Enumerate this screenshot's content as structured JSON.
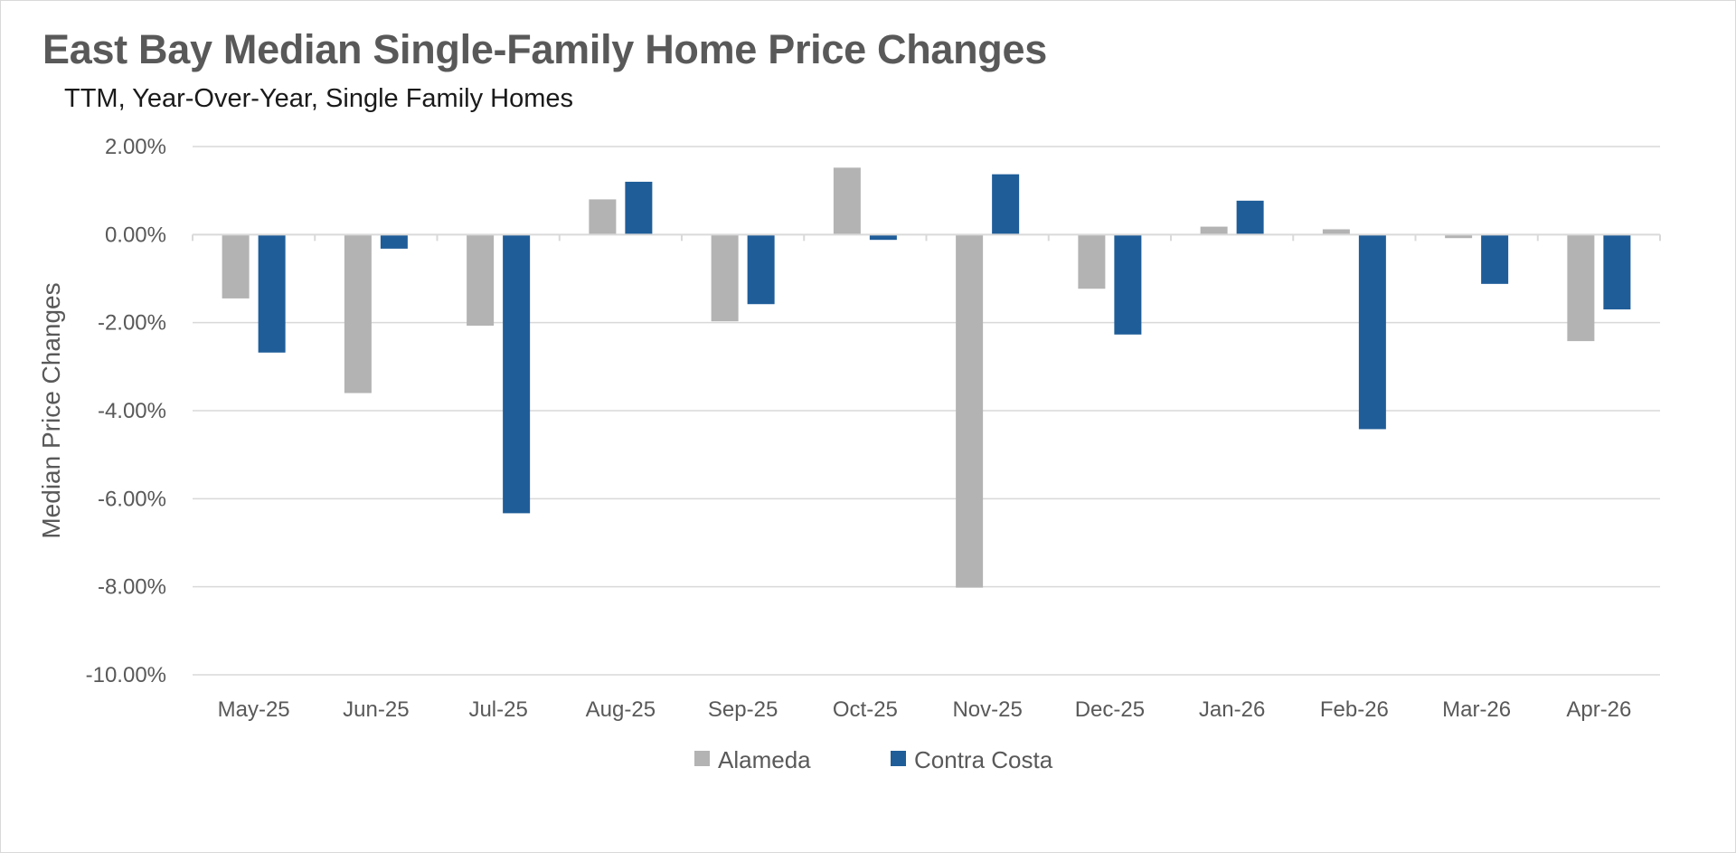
{
  "chart_data": {
    "type": "bar",
    "title": "East Bay Median Single-Family Home Price Changes",
    "subtitle": "TTM, Year-Over-Year, Single Family Homes",
    "xlabel": "",
    "ylabel": "Median Price Changes",
    "ylim": [
      -10,
      2
    ],
    "yticks": [
      2,
      0,
      -2,
      -4,
      -6,
      -8,
      -10
    ],
    "ytick_labels": [
      "2.00%",
      "0.00%",
      "-2.00%",
      "-4.00%",
      "-6.00%",
      "-8.00%",
      "-10.00%"
    ],
    "categories": [
      "May-25",
      "Jun-25",
      "Jul-25",
      "Aug-25",
      "Sep-25",
      "Oct-25",
      "Nov-25",
      "Dec-25",
      "Jan-26",
      "Feb-26",
      "Mar-26",
      "Apr-26"
    ],
    "series": [
      {
        "name": "Alameda",
        "color": "#b3b3b3",
        "values": [
          -1.45,
          -3.6,
          -2.07,
          0.8,
          -1.97,
          1.52,
          -8.02,
          -1.23,
          0.18,
          0.12,
          -0.08,
          -2.42
        ]
      },
      {
        "name": "Contra Costa",
        "color": "#1f5d99",
        "values": [
          -2.68,
          -0.32,
          -6.33,
          1.2,
          -1.58,
          -0.12,
          1.37,
          -2.27,
          0.77,
          -4.42,
          -1.12,
          -1.7
        ]
      }
    ],
    "grid": true,
    "legend": "bottom"
  }
}
